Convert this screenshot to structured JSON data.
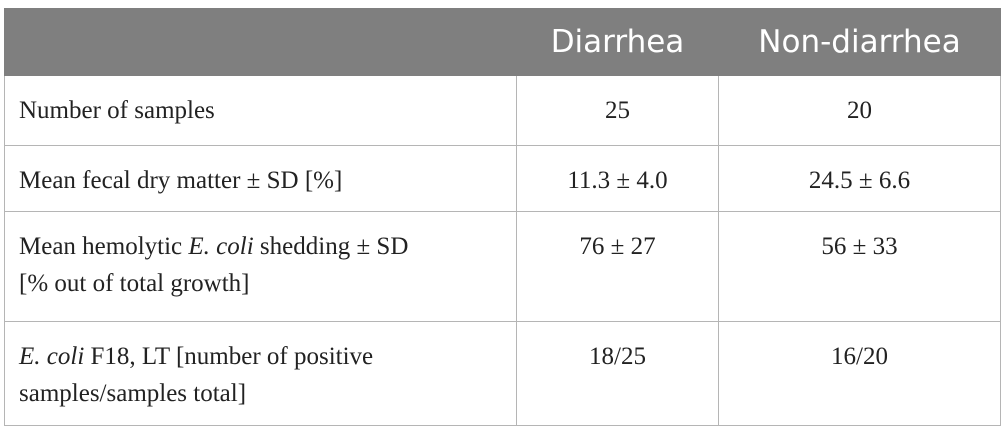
{
  "table": {
    "header": [
      "Diarrhea",
      "Non-diarrhea"
    ],
    "rows": [
      {
        "label": [
          "Number of samples"
        ],
        "values": [
          "25",
          "20"
        ]
      },
      {
        "label": [
          "Mean fecal dry matter ± SD [%]"
        ],
        "values": [
          "11.3 ± 4.0",
          "24.5 ± 6.6"
        ]
      },
      {
        "label": [
          "Mean hemolytic ",
          "E. coli",
          " shedding ± SD",
          "[% out of total growth]"
        ],
        "values": [
          "76 ± 27",
          "56 ± 33"
        ]
      },
      {
        "label": [
          "E. coli",
          " F18, LT [number of positive",
          "samples/samples total]"
        ],
        "values": [
          "18/25",
          "16/20"
        ]
      }
    ]
  }
}
